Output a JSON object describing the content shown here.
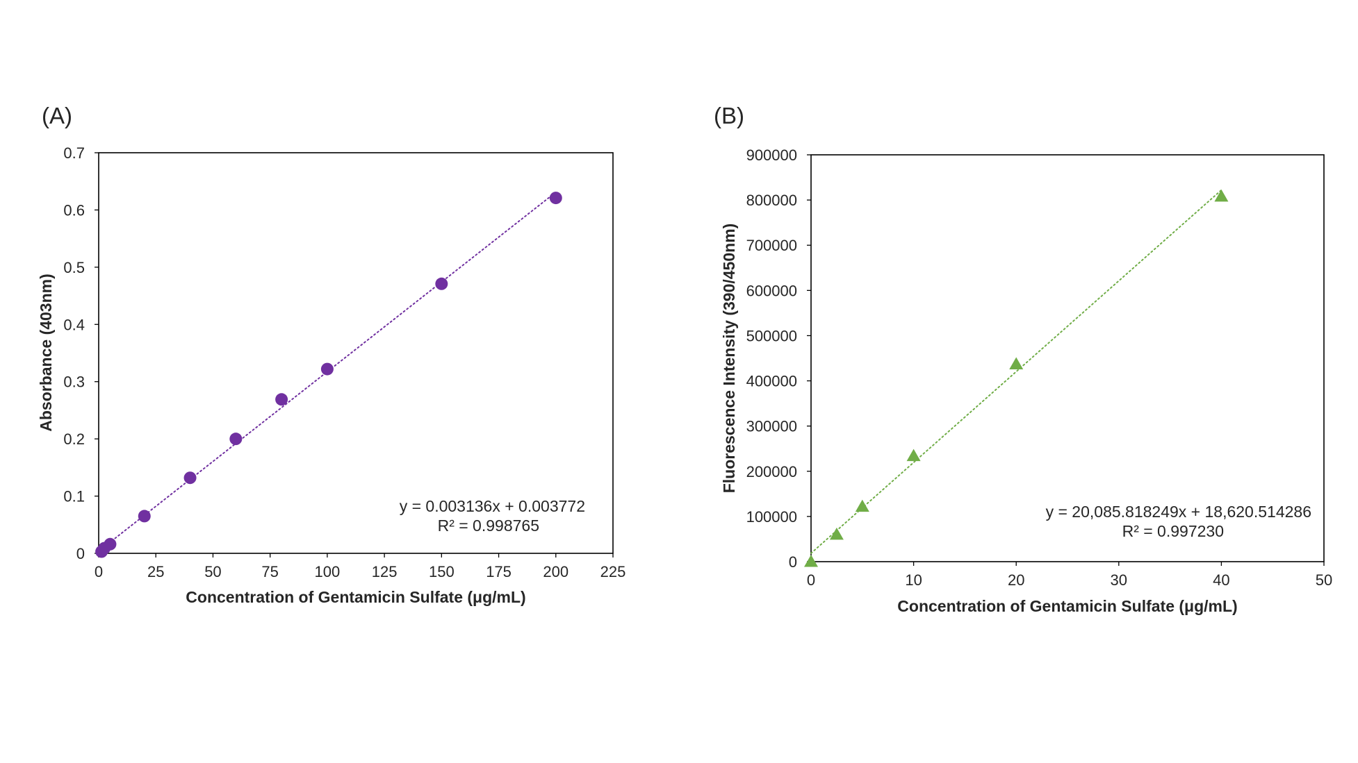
{
  "chart_data": [
    {
      "type": "scatter",
      "panel_label": "(A)",
      "title": "",
      "xlabel": "Concentration of Gentamicin Sulfate (μg/mL)",
      "ylabel": "Absorbance (403nm)",
      "xlim": [
        0,
        225
      ],
      "ylim": [
        0,
        0.7
      ],
      "xticks": [
        0,
        25,
        50,
        75,
        100,
        125,
        150,
        175,
        200,
        225
      ],
      "xtick_labels": [
        "0",
        "25",
        "50",
        "75",
        "100",
        "125",
        "150",
        "175",
        "200",
        "225"
      ],
      "yticks": [
        0,
        0.1,
        0.2,
        0.3,
        0.4,
        0.5,
        0.6,
        0.7
      ],
      "ytick_labels": [
        "0",
        "0.1",
        "0.2",
        "0.3",
        "0.4",
        "0.5",
        "0.6",
        "0.7"
      ],
      "grid": false,
      "legend": "none",
      "marker": "circle",
      "color": "#7030a0",
      "series": [
        {
          "x": [
            1.25,
            2.5,
            5,
            20,
            40,
            60,
            80,
            100,
            150,
            200
          ],
          "y": [
            0.003,
            0.009,
            0.016,
            0.065,
            0.132,
            0.2,
            0.269,
            0.322,
            0.471,
            0.621
          ]
        }
      ],
      "trendline": {
        "slope": 0.003136,
        "intercept": 0.003772,
        "x_range": [
          0,
          200
        ],
        "style": "dotted"
      },
      "equation_lines": [
        "y = 0.003136x + 0.003772",
        "R² = 0.998765"
      ]
    },
    {
      "type": "scatter",
      "panel_label": "(B)",
      "title": "",
      "xlabel": "Concentration of Gentamicin Sulfate (μg/mL)",
      "ylabel": "Fluorescence Intensity (390/450nm)",
      "xlim": [
        0,
        50
      ],
      "ylim": [
        0,
        900000
      ],
      "xticks": [
        0,
        10,
        20,
        30,
        40,
        50
      ],
      "xtick_labels": [
        "0",
        "10",
        "20",
        "30",
        "40",
        "50"
      ],
      "yticks": [
        0,
        100000,
        200000,
        300000,
        400000,
        500000,
        600000,
        700000,
        800000,
        900000
      ],
      "ytick_labels": [
        "0",
        "100000",
        "200000",
        "300000",
        "400000",
        "500000",
        "600000",
        "700000",
        "800000",
        "900000"
      ],
      "grid": false,
      "legend": "none",
      "marker": "triangle",
      "color": "#70ad47",
      "series": [
        {
          "x": [
            0,
            2.5,
            5,
            10,
            20,
            40
          ],
          "y": [
            0,
            60000,
            122000,
            234000,
            437000,
            808000
          ]
        }
      ],
      "trendline": {
        "slope": 20085.818249,
        "intercept": 18620.514286,
        "x_range": [
          0,
          40
        ],
        "style": "dotted"
      },
      "equation_lines": [
        "y = 20,085.818249x + 18,620.514286",
        "R² = 0.997230"
      ]
    }
  ]
}
